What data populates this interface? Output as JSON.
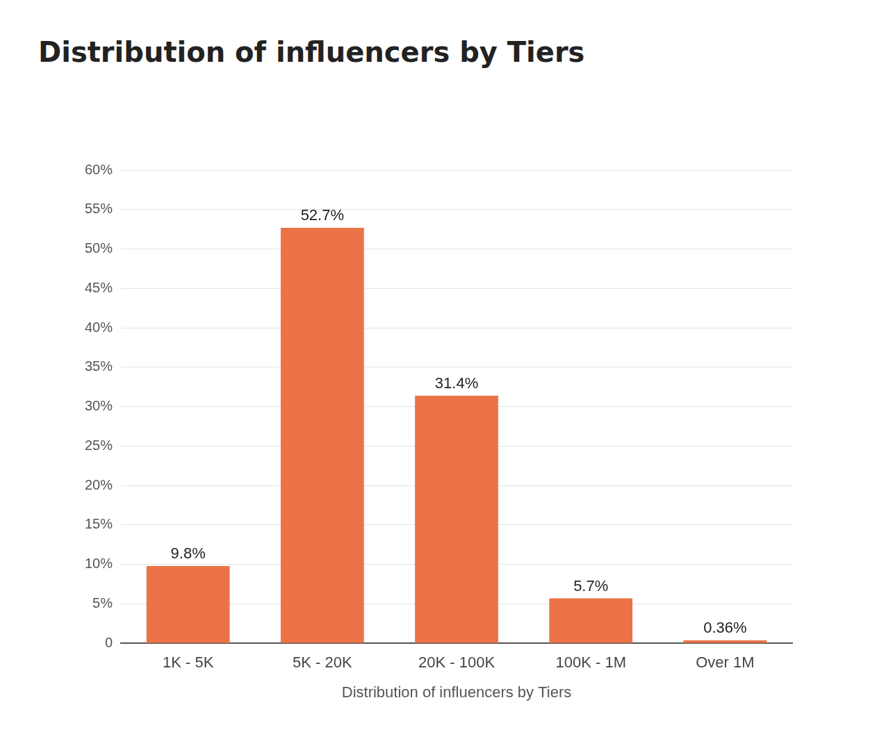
{
  "chart_data": {
    "type": "bar",
    "title": "Distribution of influencers by Tiers",
    "x_label": "Distribution of influencers by Tiers",
    "categories": [
      "1K - 5K",
      "5K - 20K",
      "20K - 100K",
      "100K - 1M",
      "Over 1M"
    ],
    "values": [
      9.8,
      52.7,
      31.4,
      5.7,
      0.36
    ],
    "value_labels": [
      "9.8%",
      "52.7%",
      "31.4%",
      "5.7%",
      "0.36%"
    ],
    "data_labels": true,
    "color": "#eb7347",
    "ylim": [
      0,
      60
    ],
    "yticks": [
      0,
      {
        "value": 5,
        "label": "5%"
      },
      {
        "value": 10,
        "label": "10%"
      },
      {
        "value": 15,
        "label": "15%"
      },
      {
        "value": 20,
        "label": "20%"
      },
      {
        "value": 25,
        "label": "25%"
      },
      {
        "value": 30,
        "label": "30%"
      },
      {
        "value": 35,
        "label": "35%"
      },
      {
        "value": 40,
        "label": "40%"
      },
      {
        "value": 45,
        "label": "45%"
      },
      {
        "value": 50,
        "label": "50%"
      },
      {
        "value": 55,
        "label": "55%"
      },
      {
        "value": 60,
        "label": "60%"
      }
    ],
    "grid": true
  }
}
